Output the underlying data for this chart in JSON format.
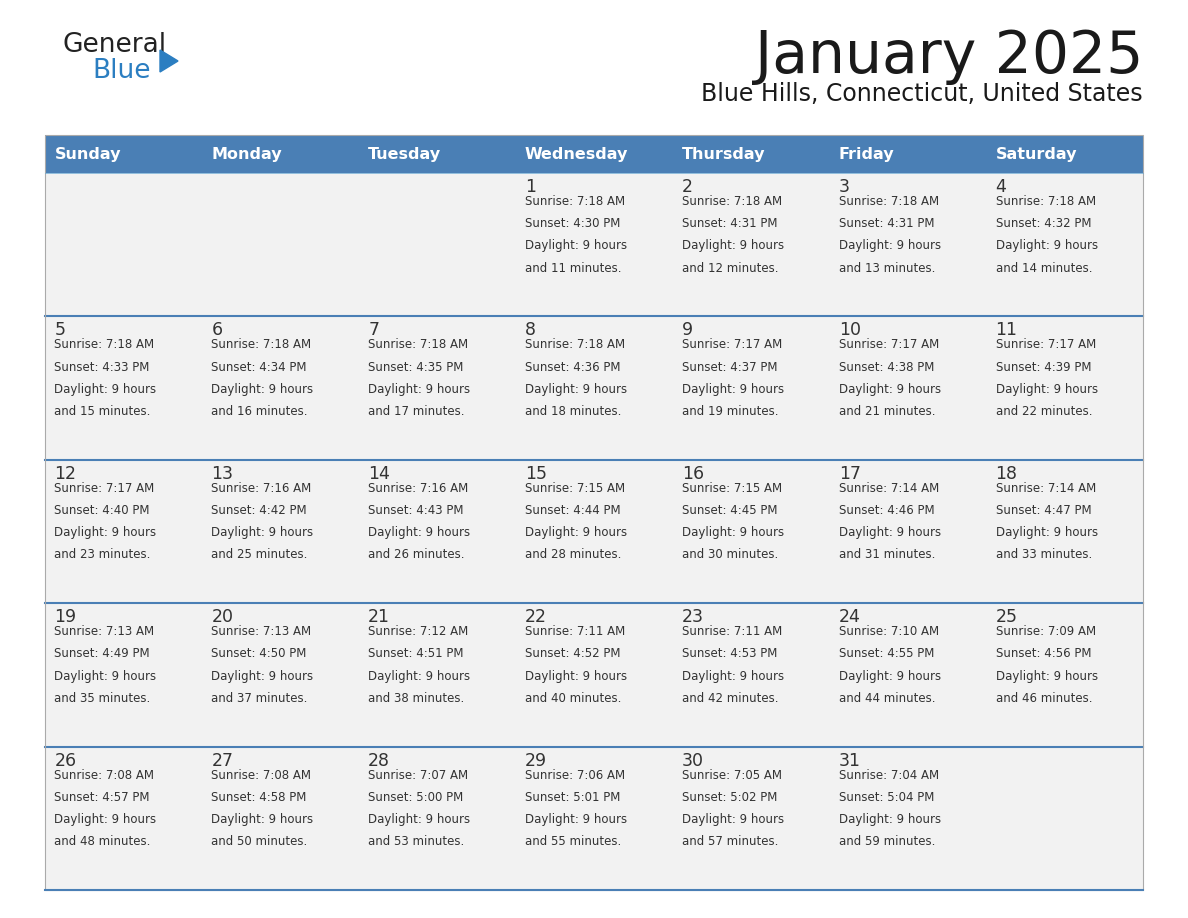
{
  "title": "January 2025",
  "subtitle": "Blue Hills, Connecticut, United States",
  "header_bg": "#4a7fb5",
  "header_text_color": "#FFFFFF",
  "cell_bg": "#f2f2f2",
  "separator_color": "#4a7fb5",
  "border_color": "#999999",
  "text_color": "#333333",
  "day_names": [
    "Sunday",
    "Monday",
    "Tuesday",
    "Wednesday",
    "Thursday",
    "Friday",
    "Saturday"
  ],
  "logo_general_color": "#222222",
  "logo_blue_color": "#2b7ec1",
  "logo_triangle_color": "#2b7ec1",
  "weeks": [
    [
      {
        "day": "",
        "sunrise": "",
        "sunset": "",
        "daylight_mins": ""
      },
      {
        "day": "",
        "sunrise": "",
        "sunset": "",
        "daylight_mins": ""
      },
      {
        "day": "",
        "sunrise": "",
        "sunset": "",
        "daylight_mins": ""
      },
      {
        "day": "1",
        "sunrise": "7:18 AM",
        "sunset": "4:30 PM",
        "daylight_mins": "11"
      },
      {
        "day": "2",
        "sunrise": "7:18 AM",
        "sunset": "4:31 PM",
        "daylight_mins": "12"
      },
      {
        "day": "3",
        "sunrise": "7:18 AM",
        "sunset": "4:31 PM",
        "daylight_mins": "13"
      },
      {
        "day": "4",
        "sunrise": "7:18 AM",
        "sunset": "4:32 PM",
        "daylight_mins": "14"
      }
    ],
    [
      {
        "day": "5",
        "sunrise": "7:18 AM",
        "sunset": "4:33 PM",
        "daylight_mins": "15"
      },
      {
        "day": "6",
        "sunrise": "7:18 AM",
        "sunset": "4:34 PM",
        "daylight_mins": "16"
      },
      {
        "day": "7",
        "sunrise": "7:18 AM",
        "sunset": "4:35 PM",
        "daylight_mins": "17"
      },
      {
        "day": "8",
        "sunrise": "7:18 AM",
        "sunset": "4:36 PM",
        "daylight_mins": "18"
      },
      {
        "day": "9",
        "sunrise": "7:17 AM",
        "sunset": "4:37 PM",
        "daylight_mins": "19"
      },
      {
        "day": "10",
        "sunrise": "7:17 AM",
        "sunset": "4:38 PM",
        "daylight_mins": "21"
      },
      {
        "day": "11",
        "sunrise": "7:17 AM",
        "sunset": "4:39 PM",
        "daylight_mins": "22"
      }
    ],
    [
      {
        "day": "12",
        "sunrise": "7:17 AM",
        "sunset": "4:40 PM",
        "daylight_mins": "23"
      },
      {
        "day": "13",
        "sunrise": "7:16 AM",
        "sunset": "4:42 PM",
        "daylight_mins": "25"
      },
      {
        "day": "14",
        "sunrise": "7:16 AM",
        "sunset": "4:43 PM",
        "daylight_mins": "26"
      },
      {
        "day": "15",
        "sunrise": "7:15 AM",
        "sunset": "4:44 PM",
        "daylight_mins": "28"
      },
      {
        "day": "16",
        "sunrise": "7:15 AM",
        "sunset": "4:45 PM",
        "daylight_mins": "30"
      },
      {
        "day": "17",
        "sunrise": "7:14 AM",
        "sunset": "4:46 PM",
        "daylight_mins": "31"
      },
      {
        "day": "18",
        "sunrise": "7:14 AM",
        "sunset": "4:47 PM",
        "daylight_mins": "33"
      }
    ],
    [
      {
        "day": "19",
        "sunrise": "7:13 AM",
        "sunset": "4:49 PM",
        "daylight_mins": "35"
      },
      {
        "day": "20",
        "sunrise": "7:13 AM",
        "sunset": "4:50 PM",
        "daylight_mins": "37"
      },
      {
        "day": "21",
        "sunrise": "7:12 AM",
        "sunset": "4:51 PM",
        "daylight_mins": "38"
      },
      {
        "day": "22",
        "sunrise": "7:11 AM",
        "sunset": "4:52 PM",
        "daylight_mins": "40"
      },
      {
        "day": "23",
        "sunrise": "7:11 AM",
        "sunset": "4:53 PM",
        "daylight_mins": "42"
      },
      {
        "day": "24",
        "sunrise": "7:10 AM",
        "sunset": "4:55 PM",
        "daylight_mins": "44"
      },
      {
        "day": "25",
        "sunrise": "7:09 AM",
        "sunset": "4:56 PM",
        "daylight_mins": "46"
      }
    ],
    [
      {
        "day": "26",
        "sunrise": "7:08 AM",
        "sunset": "4:57 PM",
        "daylight_mins": "48"
      },
      {
        "day": "27",
        "sunrise": "7:08 AM",
        "sunset": "4:58 PM",
        "daylight_mins": "50"
      },
      {
        "day": "28",
        "sunrise": "7:07 AM",
        "sunset": "5:00 PM",
        "daylight_mins": "53"
      },
      {
        "day": "29",
        "sunrise": "7:06 AM",
        "sunset": "5:01 PM",
        "daylight_mins": "55"
      },
      {
        "day": "30",
        "sunrise": "7:05 AM",
        "sunset": "5:02 PM",
        "daylight_mins": "57"
      },
      {
        "day": "31",
        "sunrise": "7:04 AM",
        "sunset": "5:04 PM",
        "daylight_mins": "59"
      },
      {
        "day": "",
        "sunrise": "",
        "sunset": "",
        "daylight_mins": ""
      }
    ]
  ]
}
